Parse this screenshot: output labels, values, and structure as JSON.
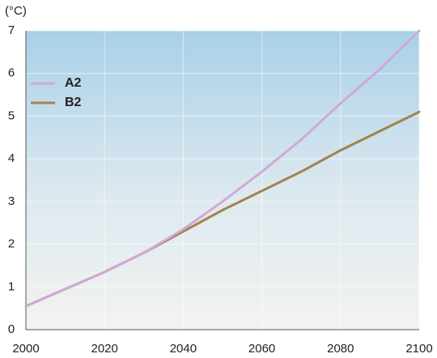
{
  "chart_data": {
    "type": "line",
    "y_unit": "(°C)",
    "x": [
      2000,
      2010,
      2020,
      2030,
      2040,
      2050,
      2060,
      2070,
      2080,
      2090,
      2100
    ],
    "series": [
      {
        "name": "A2",
        "color": "#cfa9d8",
        "values": [
          0.55,
          0.95,
          1.35,
          1.8,
          2.35,
          3.0,
          3.7,
          4.45,
          5.3,
          6.1,
          7.0
        ]
      },
      {
        "name": "B2",
        "color": "#a3824e",
        "values": [
          0.55,
          0.95,
          1.35,
          1.8,
          2.3,
          2.8,
          3.25,
          3.7,
          4.2,
          4.65,
          5.1
        ]
      }
    ],
    "xlim": [
      2000,
      2100
    ],
    "xticks": [
      2000,
      2020,
      2040,
      2060,
      2080,
      2100
    ],
    "ylim": [
      0,
      7
    ],
    "yticks": [
      0,
      1,
      2,
      3,
      4,
      5,
      6,
      7
    ],
    "grid": true,
    "legend": "upper-left"
  }
}
